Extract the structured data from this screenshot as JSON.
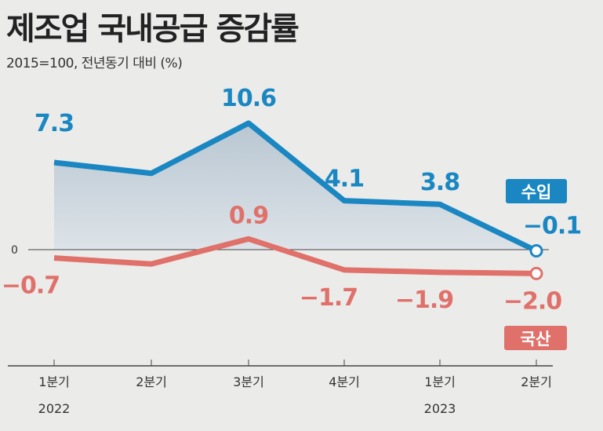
{
  "title": "제조업 국내공급 증감률",
  "subtitle": "2015=100, 전년동기 대비 (%)",
  "chart_data": {
    "type": "line",
    "title": "제조업 국내공급 증감률",
    "subtitle": "2015=100, 전년동기 대비 (%)",
    "categories": [
      "1분기",
      "2분기",
      "3분기",
      "4분기",
      "1분기",
      "2분기"
    ],
    "year_labels": [
      "2022",
      "",
      "",
      "",
      "2023",
      ""
    ],
    "zero_label": "0",
    "series": [
      {
        "name": "수입",
        "color": "#1a87c2",
        "values": [
          7.3,
          6.4,
          10.6,
          4.1,
          3.8,
          -0.1
        ],
        "labels": [
          "7.3",
          "",
          "10.6",
          "4.1",
          "3.8",
          "−0.1"
        ]
      },
      {
        "name": "국산",
        "color": "#e0716a",
        "values": [
          -0.7,
          -1.2,
          0.9,
          -1.7,
          -1.9,
          -2.0
        ],
        "labels": [
          "−0.7",
          "",
          "0.9",
          "−1.7",
          "−1.9",
          "−2.0"
        ]
      }
    ],
    "ylim": [
      -9.6,
      11.5
    ],
    "grid": false,
    "legend": "inline-right"
  }
}
